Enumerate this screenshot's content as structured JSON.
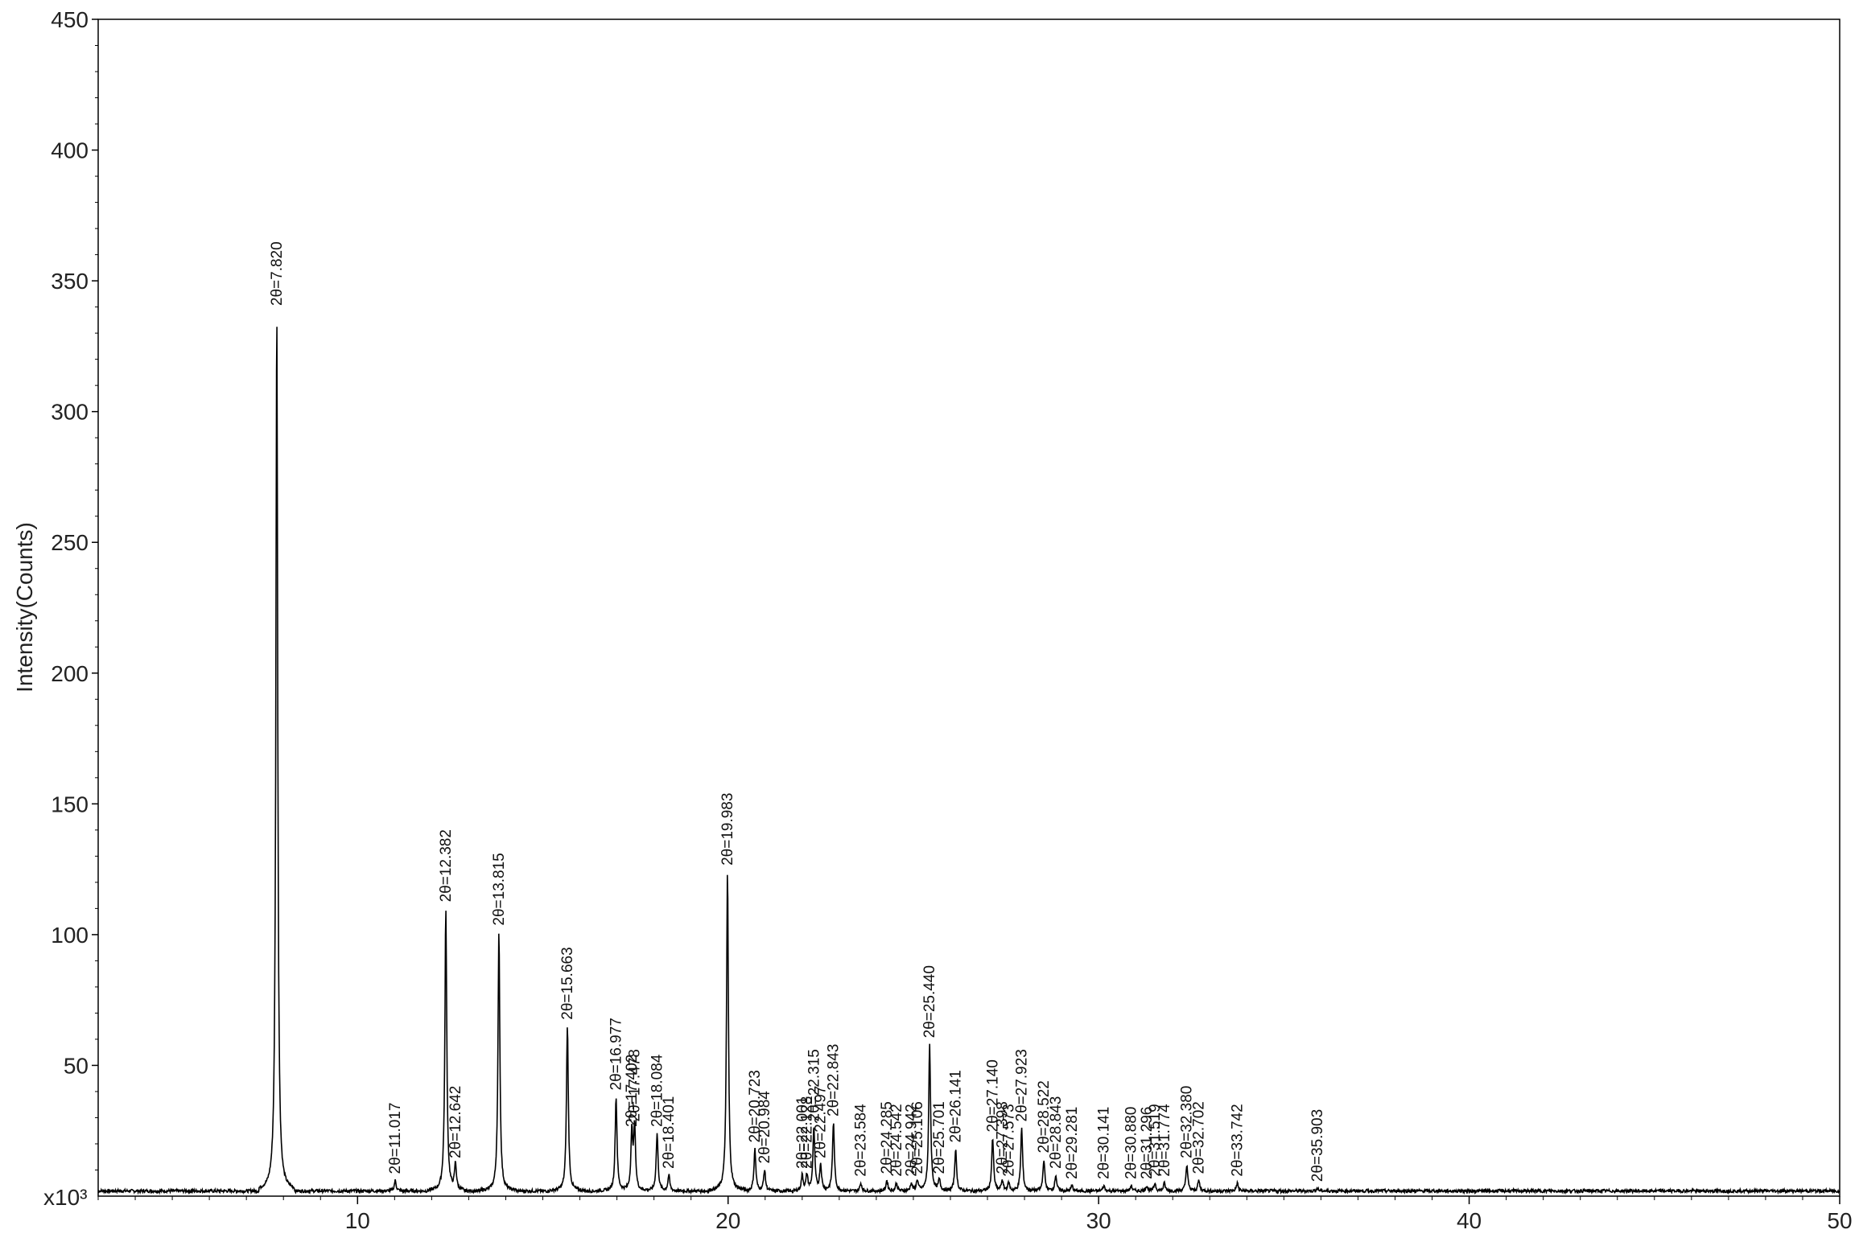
{
  "chart_data": {
    "type": "line",
    "title": "",
    "xlabel": "",
    "ylabel": "Intensity(Counts)",
    "y_multiplier_label": "x10³",
    "xlim": [
      3,
      50
    ],
    "ylim": [
      0,
      450
    ],
    "x_ticks": [
      10,
      20,
      30,
      40,
      50
    ],
    "y_ticks": [
      50,
      100,
      150,
      200,
      250,
      300,
      350,
      400,
      450
    ],
    "grid": false,
    "legend": "none",
    "colors": {
      "line": "#000000",
      "axis": "#000000"
    },
    "baseline": 2,
    "peak_width": 0.06,
    "series": [
      {
        "peaks": [
          {
            "x": 7.82,
            "y": 338,
            "label": "2θ=7.820"
          },
          {
            "x": 11.017,
            "y": 6,
            "label": "2θ=11.017"
          },
          {
            "x": 12.382,
            "y": 110,
            "label": "2θ=12.382"
          },
          {
            "x": 12.642,
            "y": 12,
            "label": "2θ=12.642"
          },
          {
            "x": 13.815,
            "y": 101,
            "label": "2θ=13.815"
          },
          {
            "x": 15.663,
            "y": 65,
            "label": "2θ=15.663"
          },
          {
            "x": 16.977,
            "y": 38,
            "label": "2θ=16.977"
          },
          {
            "x": 17.402,
            "y": 24,
            "label": "2θ=17.402"
          },
          {
            "x": 17.478,
            "y": 26,
            "label": "2θ=17.478"
          },
          {
            "x": 18.084,
            "y": 24,
            "label": "2θ=18.084"
          },
          {
            "x": 18.401,
            "y": 8,
            "label": "2θ=18.401"
          },
          {
            "x": 19.983,
            "y": 124,
            "label": "2θ=19.983"
          },
          {
            "x": 20.723,
            "y": 18,
            "label": "2θ=20.723"
          },
          {
            "x": 20.984,
            "y": 10,
            "label": "2θ=20.984"
          },
          {
            "x": 22.001,
            "y": 8,
            "label": "2θ=22.001"
          },
          {
            "x": 22.128,
            "y": 8,
            "label": "2θ=22.128"
          },
          {
            "x": 22.315,
            "y": 26,
            "label": "2θ=22.315"
          },
          {
            "x": 22.497,
            "y": 12,
            "label": "2θ=22.497"
          },
          {
            "x": 22.843,
            "y": 28,
            "label": "2θ=22.843"
          },
          {
            "x": 23.584,
            "y": 5,
            "label": "2θ=23.584"
          },
          {
            "x": 24.285,
            "y": 6,
            "label": "2θ=24.285"
          },
          {
            "x": 24.542,
            "y": 5,
            "label": "2θ=24.542"
          },
          {
            "x": 24.942,
            "y": 5,
            "label": "2θ=24.942"
          },
          {
            "x": 25.106,
            "y": 6,
            "label": "2θ=25.106"
          },
          {
            "x": 25.44,
            "y": 58,
            "label": "2θ=25.440"
          },
          {
            "x": 25.701,
            "y": 6,
            "label": "2θ=25.701"
          },
          {
            "x": 26.141,
            "y": 18,
            "label": "2θ=26.141"
          },
          {
            "x": 27.14,
            "y": 22,
            "label": "2θ=27.140"
          },
          {
            "x": 27.398,
            "y": 6,
            "label": "2θ=27.398"
          },
          {
            "x": 27.573,
            "y": 5,
            "label": "2θ=27.573"
          },
          {
            "x": 27.923,
            "y": 26,
            "label": "2θ=27.923"
          },
          {
            "x": 28.522,
            "y": 14,
            "label": "2θ=28.522"
          },
          {
            "x": 28.843,
            "y": 8,
            "label": "2θ=28.843"
          },
          {
            "x": 29.281,
            "y": 4,
            "label": "2θ=29.281"
          },
          {
            "x": 30.141,
            "y": 4,
            "label": "2θ=30.141"
          },
          {
            "x": 30.88,
            "y": 4,
            "label": "2θ=30.880"
          },
          {
            "x": 31.296,
            "y": 4,
            "label": "2θ=31.296"
          },
          {
            "x": 31.519,
            "y": 5,
            "label": "2θ=31.519"
          },
          {
            "x": 31.774,
            "y": 5,
            "label": "2θ=31.774"
          },
          {
            "x": 32.38,
            "y": 12,
            "label": "2θ=32.380"
          },
          {
            "x": 32.702,
            "y": 6,
            "label": "2θ=32.702"
          },
          {
            "x": 33.742,
            "y": 5,
            "label": "2θ=33.742"
          },
          {
            "x": 35.903,
            "y": 3,
            "label": "2θ=35.903"
          }
        ]
      }
    ]
  }
}
